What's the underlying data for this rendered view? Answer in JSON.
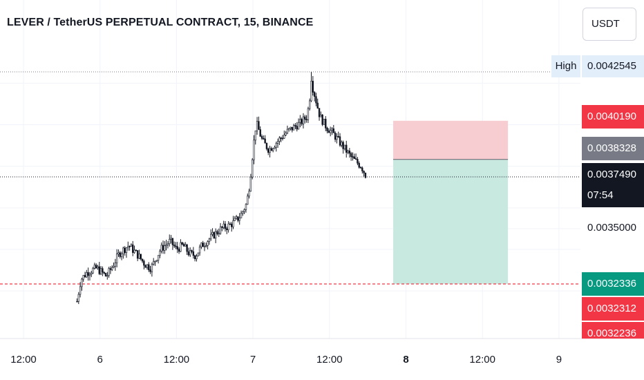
{
  "header": {
    "title": "LEVER / TetherUS PERPETUAL CONTRACT, 15, BINANCE",
    "currency_button": "USDT"
  },
  "price_axis": {
    "high_tag": "High",
    "high_value": "0.0042545",
    "stop_value": "0.0040190",
    "entry_value": "0.0038328",
    "last_value": "0.0037490",
    "countdown": "07:54",
    "tick_value": "0.0035000",
    "target_value": "0.0032336",
    "red_label_1": "0.0032312",
    "red_label_2": "0.0032236"
  },
  "time_axis": {
    "labels": [
      {
        "text": "12:00",
        "bold": false
      },
      {
        "text": "6",
        "bold": false
      },
      {
        "text": "12:00",
        "bold": false
      },
      {
        "text": "7",
        "bold": false
      },
      {
        "text": "12:00",
        "bold": false
      },
      {
        "text": "8",
        "bold": true
      },
      {
        "text": "12:00",
        "bold": false
      },
      {
        "text": "9",
        "bold": false
      }
    ]
  },
  "colors": {
    "candle": "#131722",
    "stop_zone": "#f7cdd1",
    "target_zone": "#c8e9e0",
    "red_label": "#f23645",
    "green_label": "#089981",
    "gray_label": "#787b86",
    "dark_label": "#131722",
    "dashed_line": "#f23645"
  },
  "chart_data": {
    "type": "candlestick",
    "symbol": "LEVER / TetherUS PERPETUAL CONTRACT",
    "interval": "15",
    "exchange": "BINANCE",
    "ylim": [
      0.00315,
      0.00438
    ],
    "xlim_hours": [
      0,
      108
    ],
    "time_ticks_hours": [
      12,
      24,
      36,
      48,
      60,
      72,
      84,
      96
    ],
    "time_tick_labels": [
      "12:00",
      "6",
      "12:00",
      "7",
      "12:00",
      "8",
      "12:00",
      "9"
    ],
    "series_start_hours": 20.4,
    "series_end_hours": 65.8,
    "close_anchors": [
      [
        20.4,
        0.00315
      ],
      [
        21.0,
        0.003255
      ],
      [
        22.0,
        0.00329
      ],
      [
        23.5,
        0.00331
      ],
      [
        25.0,
        0.00327
      ],
      [
        26.0,
        0.00332
      ],
      [
        27.0,
        0.00338
      ],
      [
        28.5,
        0.00342
      ],
      [
        30.0,
        0.00337
      ],
      [
        31.0,
        0.00333
      ],
      [
        32.0,
        0.00331
      ],
      [
        33.5,
        0.0034
      ],
      [
        35.0,
        0.00344
      ],
      [
        36.0,
        0.0034
      ],
      [
        37.0,
        0.00342
      ],
      [
        38.0,
        0.00338
      ],
      [
        39.0,
        0.00337
      ],
      [
        40.0,
        0.00342
      ],
      [
        41.5,
        0.00346
      ],
      [
        43.0,
        0.0035
      ],
      [
        44.0,
        0.00351
      ],
      [
        45.0,
        0.00353
      ],
      [
        46.0,
        0.00356
      ],
      [
        47.0,
        0.00362
      ],
      [
        47.5,
        0.00372
      ],
      [
        48.0,
        0.00388
      ],
      [
        48.5,
        0.00401
      ],
      [
        49.5,
        0.00392
      ],
      [
        50.5,
        0.00388
      ],
      [
        51.5,
        0.00391
      ],
      [
        52.5,
        0.00394
      ],
      [
        53.5,
        0.00397
      ],
      [
        54.5,
        0.00399
      ],
      [
        55.5,
        0.00401
      ],
      [
        56.5,
        0.00404
      ],
      [
        57.2,
        0.0042
      ],
      [
        57.7,
        0.00414
      ],
      [
        58.5,
        0.00404
      ],
      [
        59.5,
        0.00399
      ],
      [
        60.5,
        0.00396
      ],
      [
        61.5,
        0.00392
      ],
      [
        62.5,
        0.00388
      ],
      [
        63.5,
        0.00384
      ],
      [
        65.0,
        0.0038
      ],
      [
        65.8,
        0.003749
      ]
    ],
    "high": 0.0042545,
    "last_price": 0.003749,
    "last_price_line": 0.003749,
    "high_line": 0.0042545,
    "position": {
      "type": "short",
      "start_hours": 70.0,
      "end_hours": 88.0,
      "stop": 0.004019,
      "entry": 0.0038328,
      "target": 0.0032336
    },
    "dashed_level": 0.0032336
  }
}
